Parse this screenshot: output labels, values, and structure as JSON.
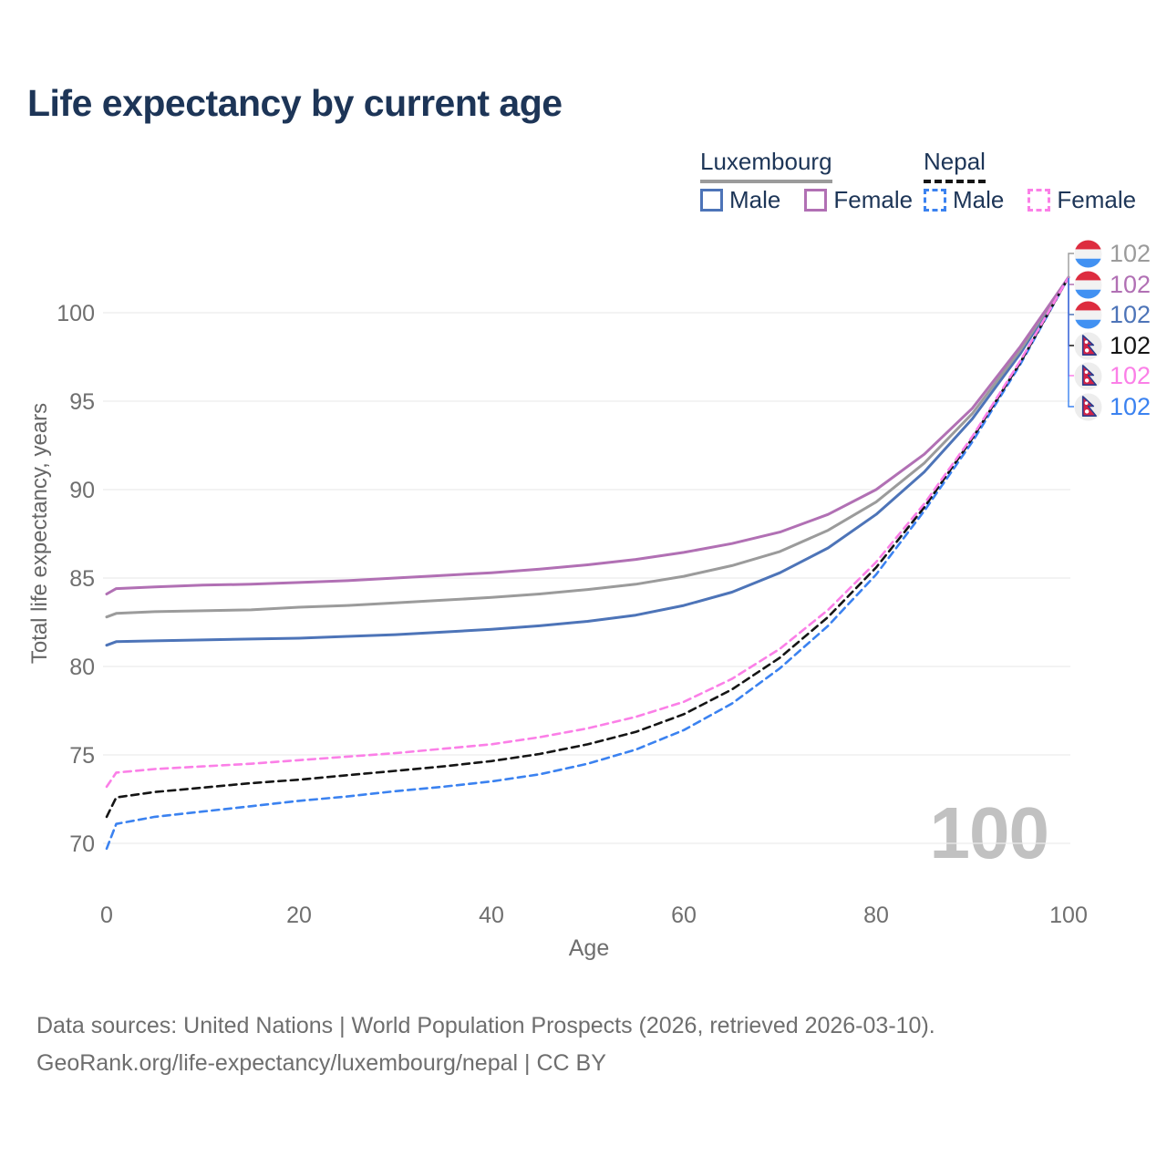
{
  "title": "Life expectancy by current age",
  "legend": {
    "groups": [
      {
        "label": "Luxembourg",
        "style": "solid",
        "line_color": "#9b9b9b",
        "items": [
          {
            "label": "Male",
            "color": "#4d74b8"
          },
          {
            "label": "Female",
            "color": "#b170b4"
          }
        ]
      },
      {
        "label": "Nepal",
        "style": "dashed",
        "line_color": "#151515",
        "items": [
          {
            "label": "Male",
            "color": "#3b82f0"
          },
          {
            "label": "Female",
            "color": "#fb7fe7"
          }
        ]
      }
    ]
  },
  "watermark": "100",
  "end_labels": [
    {
      "flag": "luxembourg",
      "series": "Luxembourg Both",
      "value": "102",
      "color": "#9b9b9b"
    },
    {
      "flag": "luxembourg",
      "series": "Luxembourg Female",
      "value": "102",
      "color": "#b170b4"
    },
    {
      "flag": "luxembourg",
      "series": "Luxembourg Male",
      "value": "102",
      "color": "#4d74b8"
    },
    {
      "flag": "nepal",
      "series": "Nepal Both",
      "value": "102",
      "color": "#151515"
    },
    {
      "flag": "nepal",
      "series": "Nepal Female",
      "value": "102",
      "color": "#fb7fe7"
    },
    {
      "flag": "nepal",
      "series": "Nepal Male",
      "value": "102",
      "color": "#3b82f0"
    }
  ],
  "footer": {
    "line1": "Data sources: United Nations | World Population Prospects (2026, retrieved 2026-03-10).",
    "line2": "GeoRank.org/life-expectancy/luxembourg/nepal | CC BY"
  },
  "chart_data": {
    "type": "line",
    "title": "Life expectancy by current age",
    "xlabel": "Age",
    "ylabel": "Total life expectancy, years",
    "x_ticks": [
      0,
      20,
      40,
      60,
      80,
      100
    ],
    "y_ticks": [
      70,
      75,
      80,
      85,
      90,
      95,
      100
    ],
    "xlim": [
      0,
      100
    ],
    "ylim": [
      69,
      102.5
    ],
    "grid": "horizontal",
    "legend_position": "top-right",
    "x": [
      0,
      1,
      5,
      10,
      15,
      20,
      25,
      30,
      35,
      40,
      45,
      50,
      55,
      60,
      65,
      70,
      75,
      80,
      85,
      90,
      95,
      100
    ],
    "series": [
      {
        "name": "Luxembourg Both",
        "country": "Luxembourg",
        "sex": "both",
        "color": "#9b9b9b",
        "dash": false,
        "values": [
          82.8,
          83.0,
          83.1,
          83.15,
          83.2,
          83.35,
          83.45,
          83.6,
          83.75,
          83.9,
          84.1,
          84.35,
          84.65,
          85.1,
          85.7,
          86.5,
          87.7,
          89.3,
          91.5,
          94.3,
          97.9,
          102
        ]
      },
      {
        "name": "Luxembourg Female",
        "country": "Luxembourg",
        "sex": "female",
        "color": "#b170b4",
        "dash": false,
        "values": [
          84.1,
          84.4,
          84.5,
          84.6,
          84.65,
          84.75,
          84.85,
          85.0,
          85.15,
          85.3,
          85.5,
          85.75,
          86.05,
          86.45,
          86.95,
          87.6,
          88.6,
          90.0,
          92.0,
          94.6,
          98.1,
          102
        ]
      },
      {
        "name": "Luxembourg Male",
        "country": "Luxembourg",
        "sex": "male",
        "color": "#4d74b8",
        "dash": false,
        "values": [
          81.2,
          81.4,
          81.45,
          81.5,
          81.55,
          81.6,
          81.7,
          81.8,
          81.95,
          82.1,
          82.3,
          82.55,
          82.9,
          83.45,
          84.2,
          85.3,
          86.7,
          88.6,
          91.0,
          94.0,
          97.7,
          102
        ]
      },
      {
        "name": "Nepal Both",
        "country": "Nepal",
        "sex": "both",
        "color": "#151515",
        "dash": true,
        "values": [
          71.5,
          72.6,
          72.9,
          73.15,
          73.4,
          73.6,
          73.85,
          74.1,
          74.35,
          74.65,
          75.05,
          75.6,
          76.3,
          77.3,
          78.7,
          80.5,
          82.8,
          85.6,
          89.0,
          92.9,
          97.2,
          102
        ]
      },
      {
        "name": "Nepal Female",
        "country": "Nepal",
        "sex": "female",
        "color": "#fb7fe7",
        "dash": true,
        "values": [
          73.2,
          74.0,
          74.2,
          74.35,
          74.5,
          74.7,
          74.9,
          75.1,
          75.35,
          75.6,
          76.0,
          76.5,
          77.15,
          78.0,
          79.3,
          81.0,
          83.2,
          85.9,
          89.2,
          93.0,
          97.3,
          102
        ]
      },
      {
        "name": "Nepal Male",
        "country": "Nepal",
        "sex": "male",
        "color": "#3b82f0",
        "dash": true,
        "values": [
          69.7,
          71.1,
          71.5,
          71.8,
          72.1,
          72.4,
          72.65,
          72.95,
          73.2,
          73.5,
          73.9,
          74.5,
          75.3,
          76.4,
          77.9,
          79.9,
          82.3,
          85.2,
          88.8,
          92.7,
          97.1,
          102
        ]
      }
    ]
  }
}
